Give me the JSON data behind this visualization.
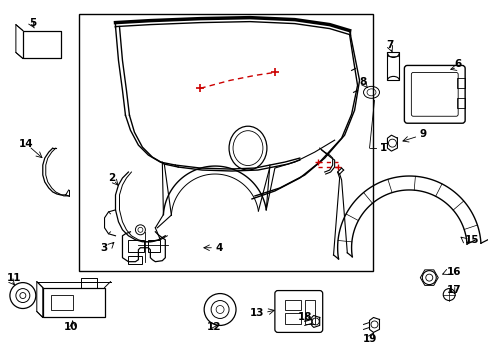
{
  "bg_color": "#ffffff",
  "line_color": "#000000",
  "red_color": "#cc0000",
  "label_color": "#000000",
  "figsize": [
    4.89,
    3.6
  ],
  "dpi": 100,
  "font_size": 7.5
}
